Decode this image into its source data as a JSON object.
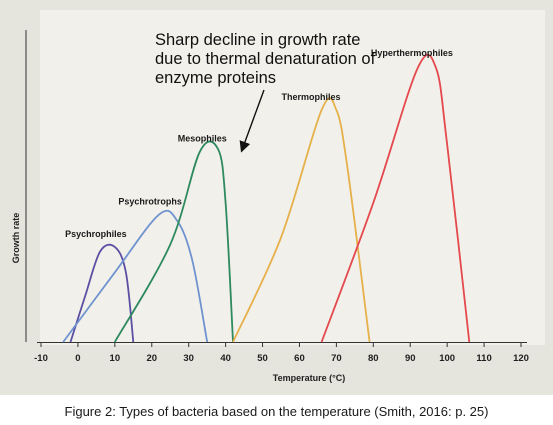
{
  "chart_data": {
    "type": "line",
    "title": "",
    "xlabel": "Temperature (°C)",
    "ylabel": "Growth rate",
    "xlim": [
      -10,
      120
    ],
    "xticks": [
      -10,
      0,
      10,
      20,
      30,
      40,
      50,
      60,
      70,
      80,
      90,
      100,
      110,
      120
    ],
    "ylim": [
      0,
      100
    ],
    "grid": false,
    "series": [
      {
        "name": "Psychrophiles",
        "color": "#5b4fa3",
        "points": [
          [
            -2,
            0
          ],
          [
            2,
            20
          ],
          [
            6,
            39
          ],
          [
            10,
            41
          ],
          [
            13,
            30
          ],
          [
            15,
            0
          ]
        ]
      },
      {
        "name": "Psychrotrophs",
        "color": "#6f93cf",
        "points": [
          [
            -4,
            0
          ],
          [
            10,
            30
          ],
          [
            22,
            55
          ],
          [
            27,
            52
          ],
          [
            31,
            35
          ],
          [
            35,
            0
          ]
        ]
      },
      {
        "name": "Mesophiles",
        "color": "#2e8a5e",
        "points": [
          [
            10,
            0
          ],
          [
            25,
            42
          ],
          [
            33,
            82
          ],
          [
            38,
            83
          ],
          [
            40,
            60
          ],
          [
            42,
            0
          ]
        ]
      },
      {
        "name": "Thermophiles",
        "color": "#e6b04a",
        "points": [
          [
            42,
            0
          ],
          [
            55,
            45
          ],
          [
            66,
            100
          ],
          [
            70,
            100
          ],
          [
            73,
            75
          ],
          [
            79,
            0
          ]
        ]
      },
      {
        "name": "Hyperthermophiles",
        "color": "#e5484d",
        "points": [
          [
            66,
            0
          ],
          [
            80,
            60
          ],
          [
            92,
            118
          ],
          [
            97,
            118
          ],
          [
            100,
            85
          ],
          [
            106,
            0
          ]
        ]
      }
    ],
    "annotations": [
      {
        "text": [
          "Sharp decline in growth rate",
          "due to thermal denaturation of",
          "enzyme proteins"
        ]
      }
    ]
  },
  "caption": "Figure 2:  Types of bacteria based on the temperature (Smith, 2016: p. 25)"
}
